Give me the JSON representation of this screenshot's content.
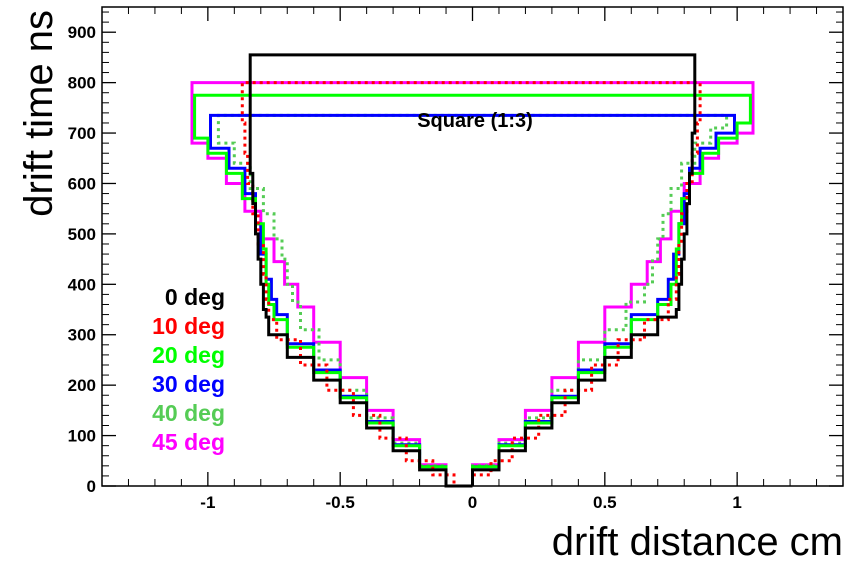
{
  "chart_data": {
    "type": "line",
    "title": "",
    "xlabel": "drift distance cm",
    "ylabel": "drift time ns",
    "annotation": "Square (1:3)",
    "xlim": [
      -1.4,
      1.4
    ],
    "ylim": [
      0,
      950
    ],
    "x_ticks": [
      -1,
      -0.5,
      0,
      0.5,
      1
    ],
    "x_tick_labels": [
      "-1",
      "-0.5",
      "0",
      "0.5",
      "1"
    ],
    "y_ticks": [
      0,
      100,
      200,
      300,
      400,
      500,
      600,
      700,
      800,
      900
    ],
    "y_tick_labels": [
      "0",
      "100",
      "200",
      "300",
      "400",
      "500",
      "600",
      "700",
      "800",
      "900"
    ],
    "grid": false,
    "legend_position": "left",
    "series": [
      {
        "name": "0 deg",
        "color": "#000000",
        "dashed": false,
        "points": [
          [
            0.84,
            855
          ],
          [
            0.84,
            700
          ],
          [
            0.83,
            620
          ],
          [
            0.82,
            560
          ],
          [
            0.81,
            500
          ],
          [
            0.8,
            450
          ],
          [
            0.79,
            400
          ],
          [
            0.78,
            350
          ],
          [
            0.77,
            335
          ],
          [
            0.7,
            300
          ],
          [
            0.6,
            255
          ],
          [
            0.5,
            210
          ],
          [
            0.4,
            165
          ],
          [
            0.3,
            115
          ],
          [
            0.2,
            70
          ],
          [
            0.1,
            32
          ],
          [
            0.0,
            0
          ]
        ]
      },
      {
        "name": "10 deg",
        "color": "#ff0000",
        "dashed": true,
        "points": [
          [
            0.87,
            800
          ],
          [
            0.86,
            720
          ],
          [
            0.85,
            660
          ],
          [
            0.83,
            600
          ],
          [
            0.81,
            540
          ],
          [
            0.79,
            480
          ],
          [
            0.78,
            420
          ],
          [
            0.77,
            370
          ],
          [
            0.74,
            330
          ],
          [
            0.65,
            290
          ],
          [
            0.55,
            240
          ],
          [
            0.45,
            190
          ],
          [
            0.35,
            140
          ],
          [
            0.25,
            95
          ],
          [
            0.15,
            50
          ],
          [
            0.07,
            22
          ],
          [
            0.0,
            0
          ]
        ]
      },
      {
        "name": "20 deg",
        "color": "#00ff00",
        "dashed": false,
        "points": [
          [
            1.05,
            775
          ],
          [
            1.05,
            720
          ],
          [
            1.0,
            690
          ],
          [
            0.93,
            660
          ],
          [
            0.87,
            620
          ],
          [
            0.82,
            570
          ],
          [
            0.79,
            520
          ],
          [
            0.78,
            470
          ],
          [
            0.77,
            400
          ],
          [
            0.75,
            360
          ],
          [
            0.7,
            330
          ],
          [
            0.6,
            275
          ],
          [
            0.5,
            225
          ],
          [
            0.4,
            175
          ],
          [
            0.3,
            125
          ],
          [
            0.2,
            80
          ],
          [
            0.1,
            38
          ],
          [
            0.0,
            0
          ]
        ]
      },
      {
        "name": "30 deg",
        "color": "#0000ff",
        "dashed": false,
        "points": [
          [
            0.99,
            735
          ],
          [
            0.99,
            700
          ],
          [
            0.92,
            670
          ],
          [
            0.86,
            630
          ],
          [
            0.82,
            580
          ],
          [
            0.8,
            520
          ],
          [
            0.78,
            460
          ],
          [
            0.76,
            410
          ],
          [
            0.74,
            370
          ],
          [
            0.7,
            340
          ],
          [
            0.6,
            282
          ],
          [
            0.5,
            230
          ],
          [
            0.4,
            178
          ],
          [
            0.3,
            128
          ],
          [
            0.2,
            82
          ],
          [
            0.1,
            38
          ],
          [
            0.0,
            0
          ]
        ]
      },
      {
        "name": "40 deg",
        "color": "#55cc55",
        "dashed": true,
        "points": [
          [
            0.96,
            735
          ],
          [
            0.96,
            710
          ],
          [
            0.9,
            680
          ],
          [
            0.84,
            640
          ],
          [
            0.79,
            590
          ],
          [
            0.75,
            540
          ],
          [
            0.72,
            490
          ],
          [
            0.7,
            450
          ],
          [
            0.68,
            400
          ],
          [
            0.65,
            365
          ],
          [
            0.58,
            310
          ],
          [
            0.5,
            250
          ],
          [
            0.4,
            190
          ],
          [
            0.3,
            135
          ],
          [
            0.2,
            85
          ],
          [
            0.1,
            40
          ],
          [
            0.0,
            0
          ]
        ]
      },
      {
        "name": "45 deg",
        "color": "#ff00ff",
        "dashed": false,
        "points": [
          [
            1.06,
            800
          ],
          [
            1.06,
            700
          ],
          [
            1.0,
            680
          ],
          [
            0.93,
            650
          ],
          [
            0.86,
            600
          ],
          [
            0.8,
            545
          ],
          [
            0.75,
            490
          ],
          [
            0.71,
            445
          ],
          [
            0.66,
            400
          ],
          [
            0.6,
            355
          ],
          [
            0.5,
            285
          ],
          [
            0.4,
            215
          ],
          [
            0.3,
            150
          ],
          [
            0.2,
            92
          ],
          [
            0.1,
            42
          ],
          [
            0.0,
            0
          ]
        ]
      }
    ]
  }
}
